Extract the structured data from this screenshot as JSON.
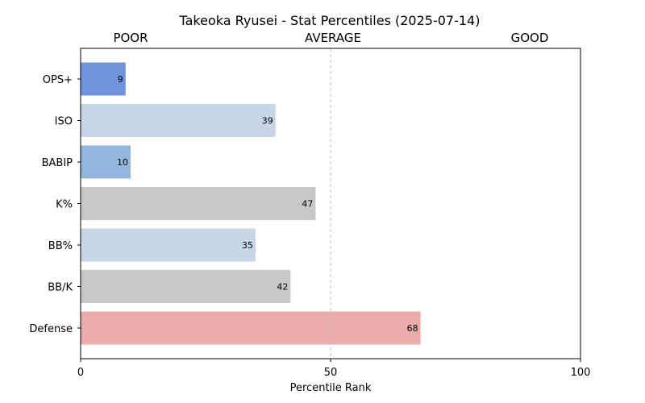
{
  "chart_data": {
    "type": "bar",
    "orientation": "horizontal",
    "title": "Takeoka Ryusei - Stat Percentiles (2025-07-14)",
    "xlabel": "Percentile Rank",
    "ylabel": "",
    "xlim": [
      0,
      100
    ],
    "xticks": [
      "0",
      "50",
      "100"
    ],
    "zone_labels": [
      "POOR",
      "AVERAGE",
      "GOOD"
    ],
    "reference_line": 50,
    "categories": [
      "OPS+",
      "ISO",
      "BABIP",
      "K%",
      "BB%",
      "BB/K",
      "Defense"
    ],
    "values": [
      9,
      39,
      10,
      47,
      35,
      42,
      68
    ],
    "value_labels": [
      "9",
      "39",
      "10",
      "47",
      "35",
      "42",
      "68"
    ],
    "bar_colors": [
      "#7194dc",
      "#c8d5e6",
      "#95b6dc",
      "#c8c8c8",
      "#c8d5e6",
      "#c8c8c8",
      "#ebacac"
    ],
    "grid": false,
    "legend": "none"
  }
}
